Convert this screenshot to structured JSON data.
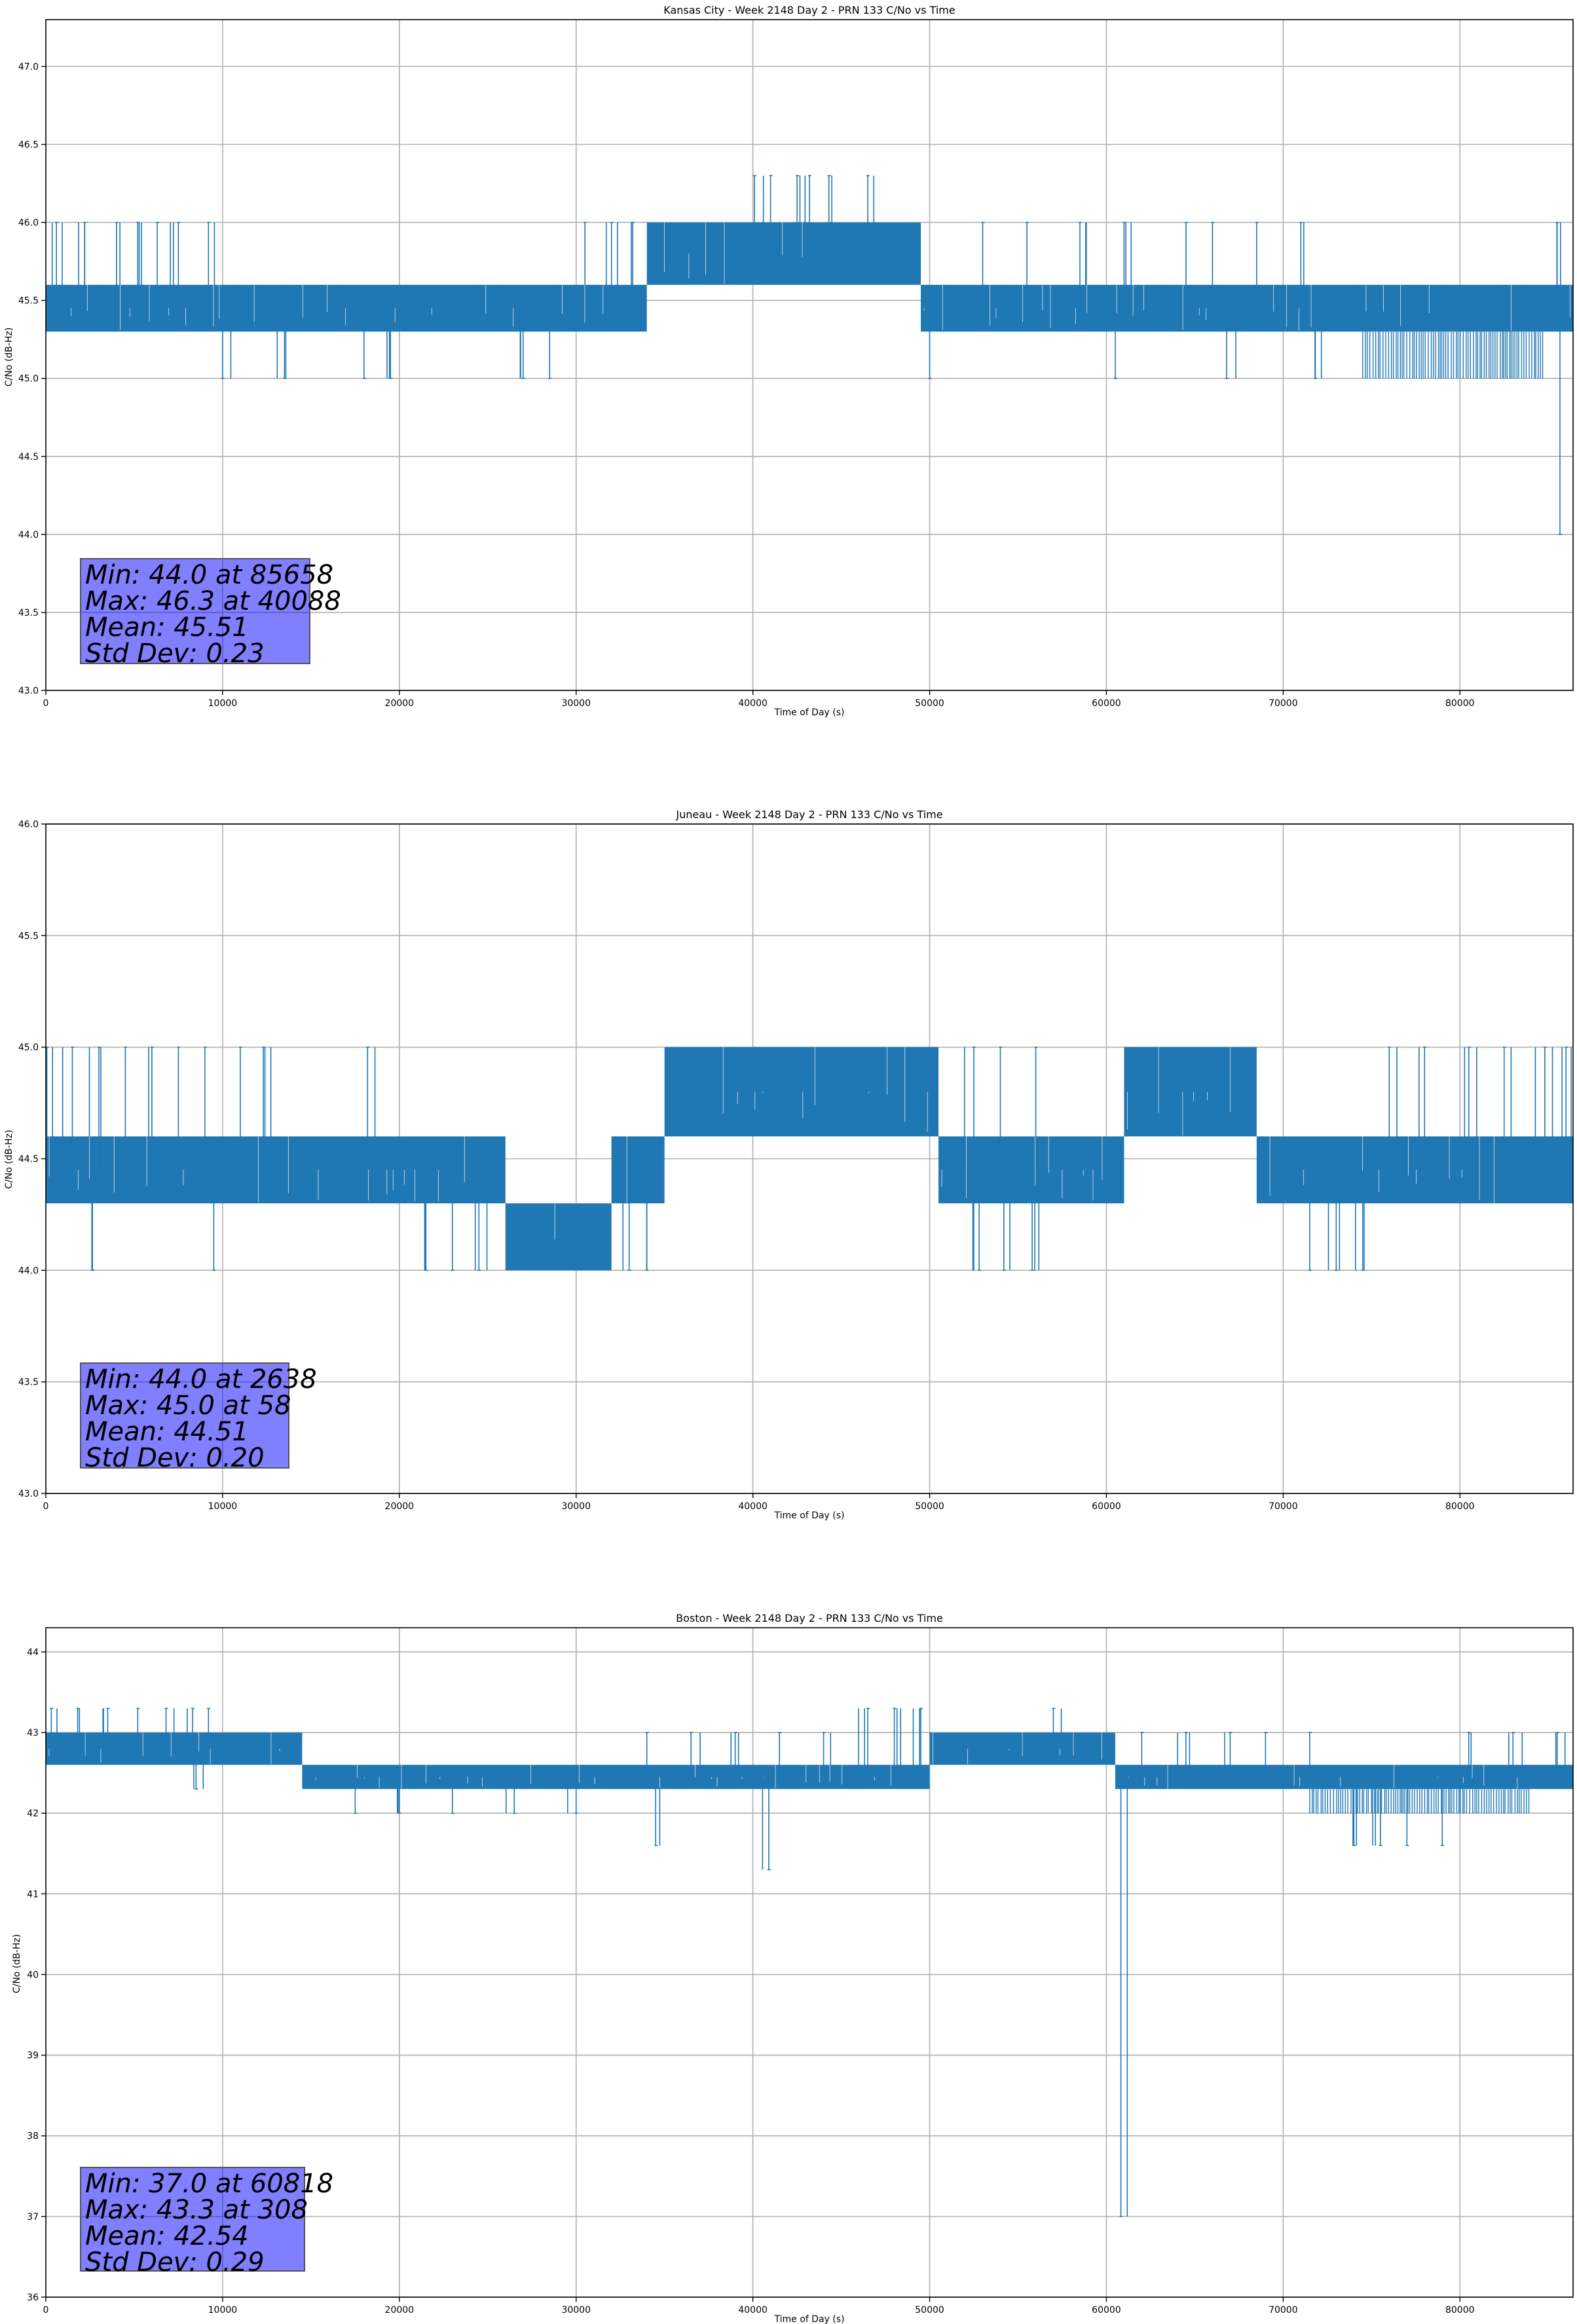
{
  "chart_data": [
    {
      "type": "line",
      "title": "Kansas City - Week 2148 Day 2 - PRN 133 C/No vs Time",
      "xlabel": "Time of Day (s)",
      "ylabel": "C/No (dB-Hz)",
      "xlim": [
        0,
        86400
      ],
      "ylim": [
        43.0,
        47.3
      ],
      "xticks": [
        0,
        10000,
        20000,
        30000,
        40000,
        50000,
        60000,
        70000,
        80000
      ],
      "yticks": [
        43.0,
        43.5,
        44.0,
        44.5,
        45.0,
        45.5,
        46.0,
        46.5,
        47.0
      ],
      "ytick_labels": [
        "43.0",
        "43.5",
        "44.0",
        "44.5",
        "45.0",
        "45.5",
        "46.0",
        "46.5",
        "47.0"
      ],
      "grid": true,
      "series": [
        {
          "color": "#1f77b4",
          "band_segments": [
            {
              "x": [
                0,
                34000
              ],
              "y": [
                45.3,
                45.6
              ]
            },
            {
              "x": [
                34000,
                49500
              ],
              "y": [
                45.6,
                46.0
              ]
            },
            {
              "x": [
                49500,
                86400
              ],
              "y": [
                45.3,
                45.6
              ]
            }
          ],
          "spikes": [
            {
              "x": 85658,
              "y": 44.0
            },
            {
              "x": 40088,
              "y": 46.3
            },
            {
              "x": 41000,
              "y": 46.3
            },
            {
              "x": 42500,
              "y": 46.3
            },
            {
              "x": 43200,
              "y": 46.3
            },
            {
              "x": 44300,
              "y": 46.3
            },
            {
              "x": 46500,
              "y": 46.3
            },
            {
              "x": 600,
              "y": 46.0
            },
            {
              "x": 2200,
              "y": 46.0
            },
            {
              "x": 4000,
              "y": 46.0
            },
            {
              "x": 5200,
              "y": 46.0
            },
            {
              "x": 6300,
              "y": 46.0
            },
            {
              "x": 7500,
              "y": 46.0
            },
            {
              "x": 9200,
              "y": 46.0
            },
            {
              "x": 30500,
              "y": 46.0
            },
            {
              "x": 32000,
              "y": 46.0
            },
            {
              "x": 33200,
              "y": 46.0
            },
            {
              "x": 53000,
              "y": 46.0
            },
            {
              "x": 55500,
              "y": 46.0
            },
            {
              "x": 58500,
              "y": 46.0
            },
            {
              "x": 61000,
              "y": 46.0
            },
            {
              "x": 64500,
              "y": 46.0
            },
            {
              "x": 66000,
              "y": 46.0
            },
            {
              "x": 68500,
              "y": 46.0
            },
            {
              "x": 71000,
              "y": 46.0
            },
            {
              "x": 85500,
              "y": 46.0
            },
            {
              "x": 10000,
              "y": 45.0
            },
            {
              "x": 13500,
              "y": 45.0
            },
            {
              "x": 18000,
              "y": 45.0
            },
            {
              "x": 19500,
              "y": 45.0
            },
            {
              "x": 27000,
              "y": 45.0
            },
            {
              "x": 28500,
              "y": 45.0
            },
            {
              "x": 50000,
              "y": 45.0
            },
            {
              "x": 60500,
              "y": 45.0
            },
            {
              "x": 66800,
              "y": 45.0
            },
            {
              "x": 71800,
              "y": 45.0
            }
          ],
          "dip_bands": [
            {
              "x": [
                74500,
                84800
              ],
              "y": [
                45.0,
                45.3
              ]
            }
          ]
        }
      ],
      "stats": {
        "min": "Min: 44.0 at 85658",
        "max": "Max: 46.3 at 40088",
        "mean": "Mean: 45.51",
        "std": "Std Dev: 0.23"
      }
    },
    {
      "type": "line",
      "title": "Juneau - Week 2148 Day 2 - PRN 133 C/No vs Time",
      "xlabel": "Time of Day (s)",
      "ylabel": "C/No (dB-Hz)",
      "xlim": [
        0,
        86400
      ],
      "ylim": [
        43.0,
        46.0
      ],
      "xticks": [
        0,
        10000,
        20000,
        30000,
        40000,
        50000,
        60000,
        70000,
        80000
      ],
      "yticks": [
        43.0,
        43.5,
        44.0,
        44.5,
        45.0,
        45.5,
        46.0
      ],
      "ytick_labels": [
        "43.0",
        "43.5",
        "44.0",
        "44.5",
        "45.0",
        "45.5",
        "46.0"
      ],
      "grid": true,
      "series": [
        {
          "color": "#1f77b4",
          "band_segments": [
            {
              "x": [
                0,
                26000
              ],
              "y": [
                44.3,
                44.6
              ]
            },
            {
              "x": [
                26000,
                32000
              ],
              "y": [
                44.0,
                44.3
              ]
            },
            {
              "x": [
                32000,
                35000
              ],
              "y": [
                44.3,
                44.6
              ]
            },
            {
              "x": [
                35000,
                50500
              ],
              "y": [
                44.6,
                45.0
              ]
            },
            {
              "x": [
                50500,
                61000
              ],
              "y": [
                44.3,
                44.6
              ]
            },
            {
              "x": [
                61000,
                68500
              ],
              "y": [
                44.6,
                45.0
              ]
            },
            {
              "x": [
                68500,
                86400
              ],
              "y": [
                44.3,
                44.6
              ]
            }
          ],
          "spikes": [
            {
              "x": 2638,
              "y": 44.0
            },
            {
              "x": 58,
              "y": 45.0
            },
            {
              "x": 1500,
              "y": 45.0
            },
            {
              "x": 3000,
              "y": 45.0
            },
            {
              "x": 4500,
              "y": 45.0
            },
            {
              "x": 6000,
              "y": 45.0
            },
            {
              "x": 7500,
              "y": 45.0
            },
            {
              "x": 9000,
              "y": 45.0
            },
            {
              "x": 11000,
              "y": 45.0
            },
            {
              "x": 12300,
              "y": 45.0
            },
            {
              "x": 18200,
              "y": 45.0
            },
            {
              "x": 9500,
              "y": 44.0
            },
            {
              "x": 21500,
              "y": 44.0
            },
            {
              "x": 23000,
              "y": 44.0
            },
            {
              "x": 24500,
              "y": 44.0
            },
            {
              "x": 33000,
              "y": 44.0
            },
            {
              "x": 34000,
              "y": 44.0
            },
            {
              "x": 52500,
              "y": 45.0
            },
            {
              "x": 54000,
              "y": 45.0
            },
            {
              "x": 56000,
              "y": 45.0
            },
            {
              "x": 52800,
              "y": 44.0
            },
            {
              "x": 54200,
              "y": 44.0
            },
            {
              "x": 55800,
              "y": 44.0
            },
            {
              "x": 71500,
              "y": 44.0
            },
            {
              "x": 73000,
              "y": 44.0
            },
            {
              "x": 74500,
              "y": 44.0
            },
            {
              "x": 76000,
              "y": 45.0
            },
            {
              "x": 78000,
              "y": 45.0
            },
            {
              "x": 80500,
              "y": 45.0
            },
            {
              "x": 82500,
              "y": 45.0
            },
            {
              "x": 84800,
              "y": 45.0
            },
            {
              "x": 86000,
              "y": 45.0
            }
          ],
          "dip_bands": []
        }
      ],
      "stats": {
        "min": "Min: 44.0 at 2638",
        "max": "Max: 45.0 at 58",
        "mean": "Mean: 44.51",
        "std": "Std Dev: 0.20"
      }
    },
    {
      "type": "line",
      "title": "Boston - Week 2148 Day 2 - PRN 133 C/No vs Time",
      "xlabel": "Time of Day (s)",
      "ylabel": "C/No (dB-Hz)",
      "xlim": [
        0,
        86400
      ],
      "ylim": [
        36,
        44.3
      ],
      "xticks": [
        0,
        10000,
        20000,
        30000,
        40000,
        50000,
        60000,
        70000,
        80000
      ],
      "yticks": [
        36,
        37,
        38,
        39,
        40,
        41,
        42,
        43,
        44
      ],
      "ytick_labels": [
        "36",
        "37",
        "38",
        "39",
        "40",
        "41",
        "42",
        "43",
        "44"
      ],
      "grid": true,
      "series": [
        {
          "color": "#1f77b4",
          "band_segments": [
            {
              "x": [
                0,
                14500
              ],
              "y": [
                42.6,
                43.0
              ]
            },
            {
              "x": [
                14500,
                50000
              ],
              "y": [
                42.3,
                42.6
              ]
            },
            {
              "x": [
                50000,
                60500
              ],
              "y": [
                42.6,
                43.0
              ]
            },
            {
              "x": [
                60500,
                86400
              ],
              "y": [
                42.3,
                42.6
              ]
            }
          ],
          "spikes": [
            {
              "x": 60818,
              "y": 37.0
            },
            {
              "x": 308,
              "y": 43.3
            },
            {
              "x": 1800,
              "y": 43.3
            },
            {
              "x": 3500,
              "y": 43.3
            },
            {
              "x": 5200,
              "y": 43.3
            },
            {
              "x": 6800,
              "y": 43.3
            },
            {
              "x": 8300,
              "y": 43.3
            },
            {
              "x": 9200,
              "y": 43.3
            },
            {
              "x": 46500,
              "y": 43.3
            },
            {
              "x": 48000,
              "y": 43.3
            },
            {
              "x": 49500,
              "y": 43.3
            },
            {
              "x": 57000,
              "y": 43.3
            },
            {
              "x": 34500,
              "y": 41.6
            },
            {
              "x": 40900,
              "y": 41.3
            },
            {
              "x": 74000,
              "y": 41.6
            },
            {
              "x": 75500,
              "y": 41.6
            },
            {
              "x": 77000,
              "y": 41.6
            },
            {
              "x": 79000,
              "y": 41.6
            },
            {
              "x": 8500,
              "y": 42.3
            },
            {
              "x": 17500,
              "y": 42.0
            },
            {
              "x": 20000,
              "y": 42.0
            },
            {
              "x": 23000,
              "y": 42.0
            },
            {
              "x": 26500,
              "y": 42.0
            },
            {
              "x": 30000,
              "y": 42.0
            },
            {
              "x": 34000,
              "y": 43.0
            },
            {
              "x": 36500,
              "y": 43.0
            },
            {
              "x": 39000,
              "y": 43.0
            },
            {
              "x": 41500,
              "y": 43.0
            },
            {
              "x": 44000,
              "y": 43.0
            },
            {
              "x": 62000,
              "y": 43.0
            },
            {
              "x": 64500,
              "y": 43.0
            },
            {
              "x": 67000,
              "y": 43.0
            },
            {
              "x": 69000,
              "y": 43.0
            },
            {
              "x": 71500,
              "y": 43.0
            },
            {
              "x": 80500,
              "y": 43.0
            },
            {
              "x": 83000,
              "y": 43.0
            },
            {
              "x": 85500,
              "y": 43.0
            }
          ],
          "dip_bands": [
            {
              "x": [
                71500,
                84000
              ],
              "y": [
                42.0,
                42.3
              ]
            }
          ]
        }
      ],
      "stats": {
        "min": "Min: 37.0 at 60818",
        "max": "Max: 43.3 at 308",
        "mean": "Mean: 42.54",
        "std": "Std Dev: 0.29"
      }
    }
  ]
}
